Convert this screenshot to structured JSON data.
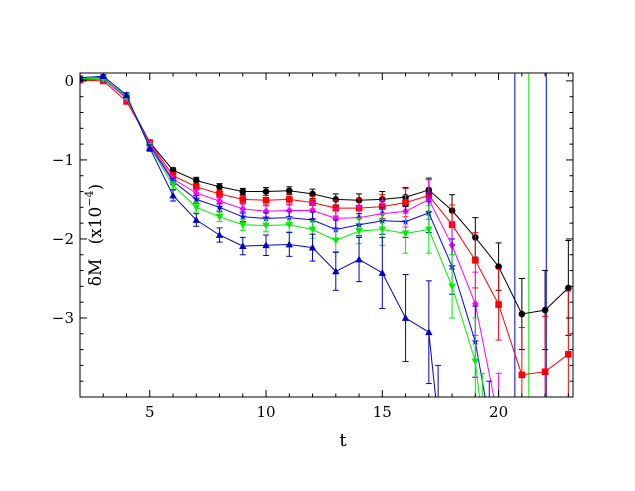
{
  "chart_data": {
    "type": "line",
    "xlabel": "t",
    "ylabel": {
      "prefix": "δM",
      "unit": "(x10",
      "exponent": "−4",
      "close": ")"
    },
    "xlim": [
      2,
      23.2
    ],
    "ylim": [
      -4.0,
      0.1
    ],
    "xticks": [
      5,
      10,
      15,
      20
    ],
    "yticks": [
      0,
      -1,
      -2,
      -3
    ],
    "x_tick_labels": [
      "5",
      "10",
      "15",
      "20"
    ],
    "y_tick_labels": [
      "0",
      "−1",
      "−2",
      "−3"
    ],
    "grid": false,
    "series": [
      {
        "color": "#000000",
        "marker": "circle",
        "x": [
          2,
          3,
          4,
          5,
          6,
          7,
          8,
          9,
          10,
          11,
          12,
          13,
          14,
          15,
          16,
          17,
          18,
          19,
          20,
          21,
          22,
          23
        ],
        "y": [
          0.02,
          0.04,
          -0.22,
          -0.78,
          -1.13,
          -1.26,
          -1.34,
          -1.4,
          -1.4,
          -1.39,
          -1.43,
          -1.5,
          -1.51,
          -1.5,
          -1.47,
          -1.38,
          -1.64,
          -1.98,
          -2.35,
          -2.95,
          -2.9,
          -2.62
        ],
        "err": [
          0.02,
          0.02,
          0.03,
          0.03,
          0.03,
          0.04,
          0.04,
          0.04,
          0.05,
          0.05,
          0.06,
          0.07,
          0.08,
          0.1,
          0.12,
          0.15,
          0.2,
          0.25,
          0.3,
          0.45,
          0.5,
          0.6
        ]
      },
      {
        "color": "#ff0000",
        "marker": "square",
        "x": [
          2,
          3,
          4,
          5,
          6,
          7,
          8,
          9,
          10,
          11,
          12,
          13,
          14,
          15,
          16,
          17,
          18,
          19,
          20,
          21,
          22,
          23
        ],
        "y": [
          0.01,
          0.0,
          -0.26,
          -0.78,
          -1.2,
          -1.34,
          -1.43,
          -1.5,
          -1.51,
          -1.5,
          -1.54,
          -1.61,
          -1.61,
          -1.59,
          -1.54,
          -1.45,
          -1.82,
          -2.27,
          -2.83,
          -3.72,
          -3.68,
          -3.46
        ],
        "err": [
          0.02,
          0.02,
          0.03,
          0.03,
          0.04,
          0.04,
          0.05,
          0.05,
          0.06,
          0.07,
          0.08,
          0.1,
          0.12,
          0.15,
          0.18,
          0.2,
          0.25,
          0.35,
          0.45,
          0.6,
          0.7,
          0.8
        ]
      },
      {
        "color": "#ff00ff",
        "marker": "diamond",
        "x": [
          2,
          3,
          4,
          5,
          6,
          7,
          8,
          9,
          10,
          11,
          12,
          13,
          14,
          15,
          16,
          17,
          18,
          19,
          20
        ],
        "y": [
          0.02,
          0.02,
          -0.22,
          -0.8,
          -1.24,
          -1.42,
          -1.52,
          -1.62,
          -1.65,
          -1.64,
          -1.64,
          -1.74,
          -1.73,
          -1.68,
          -1.65,
          -1.5,
          -2.08,
          -2.82,
          -4.3
        ],
        "err": [
          0.02,
          0.02,
          0.03,
          0.03,
          0.04,
          0.05,
          0.05,
          0.06,
          0.07,
          0.08,
          0.1,
          0.12,
          0.14,
          0.17,
          0.2,
          0.25,
          0.3,
          0.4,
          0.6
        ]
      },
      {
        "color": "#0000ff",
        "marker": "star",
        "x": [
          2,
          3,
          4,
          5,
          6,
          7,
          8,
          9,
          10,
          11,
          12,
          13,
          14,
          15,
          16,
          17,
          18,
          19,
          19.6
        ],
        "y": [
          0.02,
          0.03,
          -0.2,
          -0.82,
          -1.27,
          -1.5,
          -1.6,
          -1.72,
          -1.74,
          -1.73,
          -1.76,
          -1.88,
          -1.82,
          -1.77,
          -1.78,
          -1.67,
          -2.35,
          -3.3,
          -4.3
        ],
        "err": [
          0.02,
          0.02,
          0.03,
          0.03,
          0.04,
          0.05,
          0.05,
          0.06,
          0.07,
          0.08,
          0.1,
          0.12,
          0.14,
          0.17,
          0.2,
          0.25,
          0.35,
          0.45,
          0.5
        ]
      },
      {
        "color": "#00ee00",
        "marker": "triangle-down",
        "x": [
          2,
          3,
          4,
          5,
          6,
          7,
          8,
          9,
          10,
          11,
          12,
          13,
          14,
          15,
          16,
          17,
          18,
          19,
          19.3
        ],
        "y": [
          0.03,
          0.03,
          -0.2,
          -0.83,
          -1.32,
          -1.6,
          -1.72,
          -1.82,
          -1.83,
          -1.82,
          -1.88,
          -2.02,
          -1.9,
          -1.88,
          -1.93,
          -1.88,
          -2.6,
          -3.55,
          -4.3
        ],
        "err": [
          0.02,
          0.02,
          0.03,
          0.04,
          0.05,
          0.06,
          0.06,
          0.07,
          0.08,
          0.09,
          0.11,
          0.14,
          0.16,
          0.2,
          0.25,
          0.3,
          0.4,
          0.55,
          0.6
        ]
      },
      {
        "color": "#0000cc",
        "marker": "triangle-up",
        "x": [
          2,
          3,
          4,
          5,
          6,
          7,
          8,
          9,
          10,
          11,
          12,
          13,
          14,
          15,
          16,
          17,
          17.4
        ],
        "y": [
          0.04,
          0.06,
          -0.18,
          -0.85,
          -1.45,
          -1.76,
          -1.95,
          -2.09,
          -2.08,
          -2.07,
          -2.11,
          -2.41,
          -2.26,
          -2.43,
          -3.0,
          -3.18,
          -4.3
        ],
        "err": [
          0.02,
          0.02,
          0.03,
          0.04,
          0.07,
          0.08,
          0.09,
          0.11,
          0.13,
          0.15,
          0.17,
          0.24,
          0.28,
          0.45,
          0.55,
          0.65,
          0.7
        ]
      }
    ],
    "outliers": [
      {
        "color": "#0000cc",
        "x": 20.7
      },
      {
        "color": "#00ee00",
        "x": 21.3
      },
      {
        "color": "#0000ff",
        "x": 22.05
      }
    ]
  }
}
